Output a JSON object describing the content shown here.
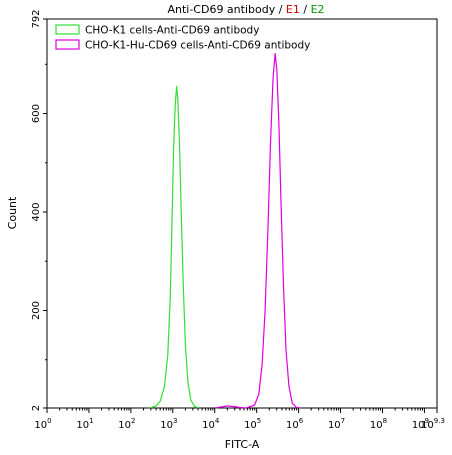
{
  "chart_data": {
    "type": "line",
    "title_parts": [
      {
        "text": "Anti-CD69 antibody / ",
        "color": "#000000"
      },
      {
        "text": "E1",
        "color": "#cc0000"
      },
      {
        "text": " / ",
        "color": "#000000"
      },
      {
        "text": "E2",
        "color": "#009900"
      }
    ],
    "xlabel": "FITC-A",
    "ylabel": "Count",
    "x_scale": "log",
    "xlim_exponent": [
      0,
      9.3
    ],
    "x_tick_exponents": [
      "0",
      "1",
      "2",
      "3",
      "4",
      "5",
      "6",
      "7",
      "8",
      "9",
      "9.3"
    ],
    "ylim": [
      2,
      792
    ],
    "y_ticks": [
      {
        "value": 2,
        "label": "2"
      },
      {
        "value": 200,
        "label": "200"
      },
      {
        "value": 400,
        "label": "400"
      },
      {
        "value": 600,
        "label": "600"
      },
      {
        "value": 792,
        "label": "792"
      }
    ],
    "grid": false,
    "legend_position": "top-left",
    "series": [
      {
        "name": "CHO-K1 cells-Anti-CD69 antibody",
        "color": "#33dd33",
        "points": [
          [
            2.45,
            2
          ],
          [
            2.6,
            6
          ],
          [
            2.7,
            16
          ],
          [
            2.8,
            45
          ],
          [
            2.88,
            110
          ],
          [
            2.94,
            230
          ],
          [
            2.98,
            380
          ],
          [
            3.02,
            530
          ],
          [
            3.06,
            620
          ],
          [
            3.09,
            655
          ],
          [
            3.12,
            630
          ],
          [
            3.16,
            540
          ],
          [
            3.2,
            400
          ],
          [
            3.25,
            250
          ],
          [
            3.3,
            130
          ],
          [
            3.36,
            55
          ],
          [
            3.43,
            18
          ],
          [
            3.52,
            5
          ],
          [
            3.62,
            2
          ]
        ]
      },
      {
        "name": "CHO-K1-Hu-CD69 cells-Anti-CD69 antibody",
        "color": "#dd00dd",
        "points": [
          [
            4.0,
            2
          ],
          [
            4.15,
            4
          ],
          [
            4.3,
            6
          ],
          [
            4.45,
            5
          ],
          [
            4.6,
            3
          ],
          [
            4.75,
            2
          ],
          [
            4.95,
            8
          ],
          [
            5.05,
            30
          ],
          [
            5.13,
            90
          ],
          [
            5.2,
            200
          ],
          [
            5.27,
            370
          ],
          [
            5.33,
            540
          ],
          [
            5.39,
            670
          ],
          [
            5.44,
            722
          ],
          [
            5.48,
            690
          ],
          [
            5.53,
            580
          ],
          [
            5.58,
            420
          ],
          [
            5.64,
            250
          ],
          [
            5.7,
            120
          ],
          [
            5.77,
            45
          ],
          [
            5.85,
            12
          ],
          [
            5.95,
            3
          ],
          [
            6.05,
            2
          ]
        ]
      }
    ]
  }
}
